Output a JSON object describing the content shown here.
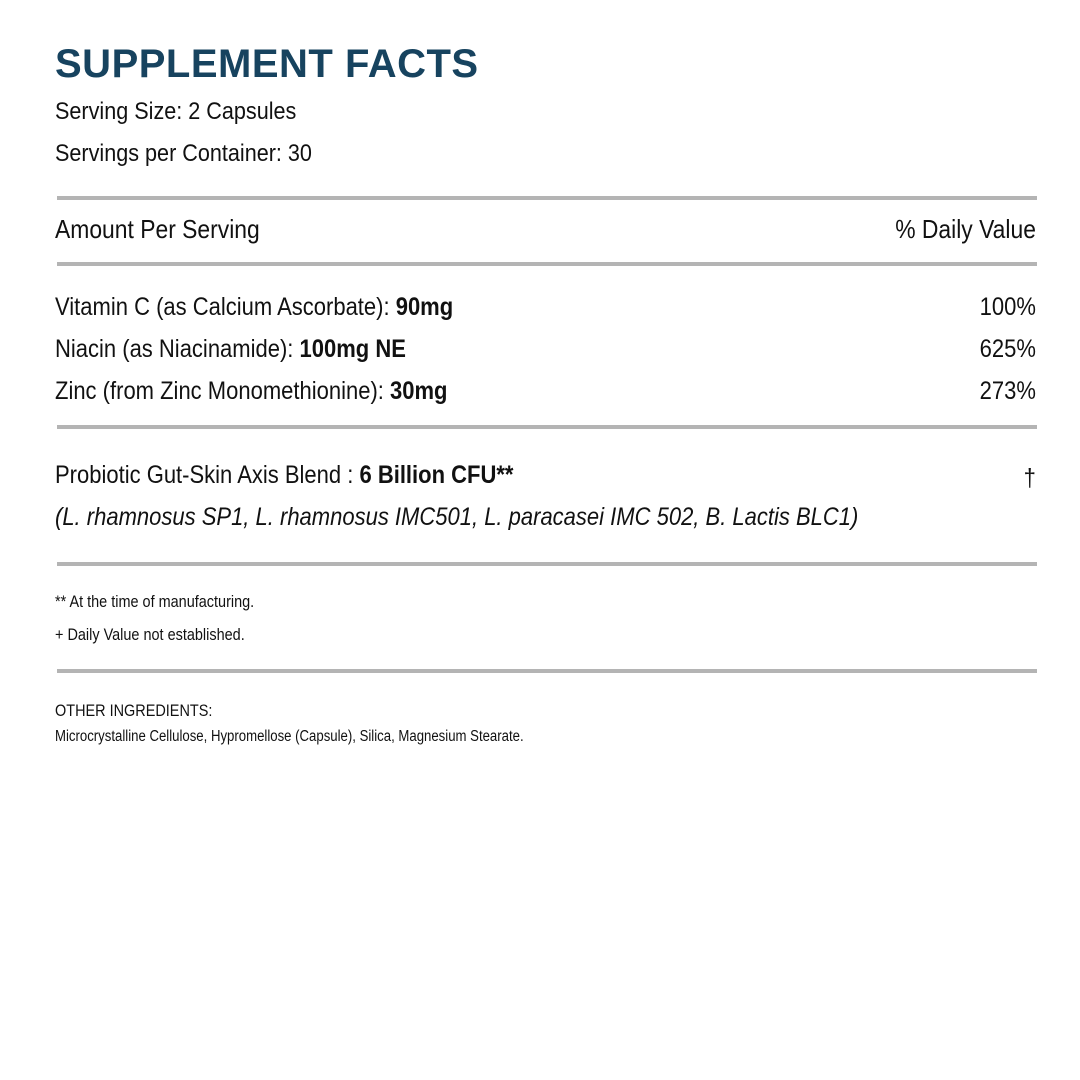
{
  "title": "SUPPLEMENT FACTS",
  "serving_size": "Serving Size: 2 Capsules",
  "servings_per_container": "Servings per Container: 30",
  "header": {
    "amount": "Amount Per Serving",
    "daily_value": "% Daily Value"
  },
  "nutrients": [
    {
      "name": "Vitamin C (as Calcium Ascorbate): ",
      "amount": "90mg",
      "dv": "100%"
    },
    {
      "name": "Niacin (as Niacinamide): ",
      "amount": "100mg NE",
      "dv": "625%"
    },
    {
      "name": "Zinc (from Zinc Monomethionine): ",
      "amount": "30mg",
      "dv": "273%"
    }
  ],
  "blend": {
    "name": "Probiotic Gut-Skin Axis Blend : ",
    "amount": "6 Billion CFU**",
    "dv": "†",
    "strains": "(L. rhamnosus SP1, L. rhamnosus IMC501, L. paracasei IMC 502, B. Lactis BLC1)"
  },
  "footnotes": [
    "** At the time of manufacturing.",
    "+  Daily Value not established."
  ],
  "other_ingredients": {
    "label": "OTHER INGREDIENTS:",
    "text": "Microcrystalline Cellulose, Hypromellose (Capsule), Silica, Magnesium Stearate."
  },
  "colors": {
    "title": "#17435f",
    "rule": "#b4b4b4"
  }
}
